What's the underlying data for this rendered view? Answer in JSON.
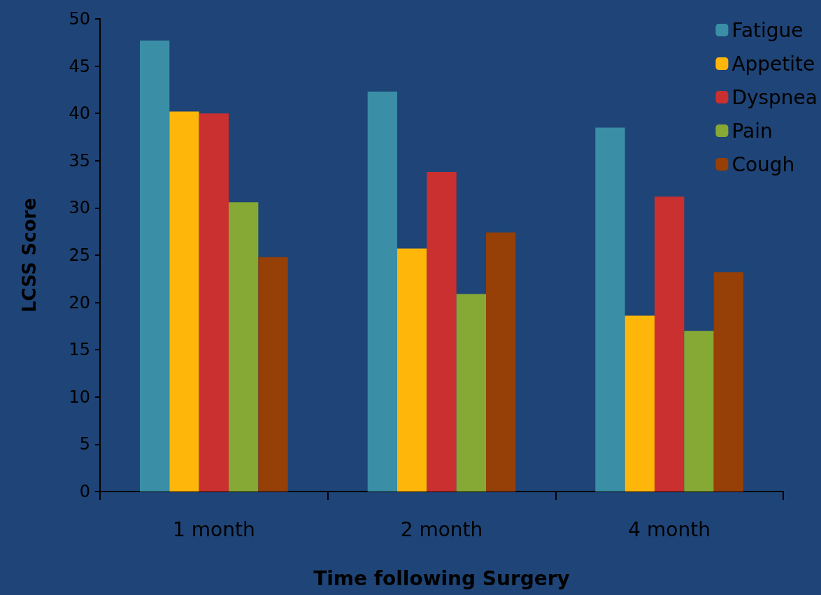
{
  "chart_data": {
    "type": "bar",
    "xlabel": "Time following Surgery",
    "ylabel": "LCSS Score",
    "categories": [
      "1 month",
      "2 month",
      "4 month"
    ],
    "series": [
      {
        "name": "Fatigue",
        "color": "#3a8fa6",
        "values": [
          47.7,
          42.3,
          38.5
        ]
      },
      {
        "name": "Appetite",
        "color": "#ffb60a",
        "values": [
          40.2,
          25.7,
          18.6
        ]
      },
      {
        "name": "Dyspnea",
        "color": "#c9302f",
        "values": [
          40.0,
          33.8,
          31.2
        ]
      },
      {
        "name": "Pain",
        "color": "#86a834",
        "values": [
          30.6,
          20.9,
          17.0
        ]
      },
      {
        "name": "Cough",
        "color": "#963f06",
        "values": [
          24.8,
          27.4,
          23.2
        ]
      }
    ],
    "ylim": [
      0,
      50
    ],
    "yticks": [
      0,
      5,
      10,
      15,
      20,
      25,
      30,
      35,
      40,
      45,
      50
    ],
    "grid": false,
    "legend": "top right"
  }
}
